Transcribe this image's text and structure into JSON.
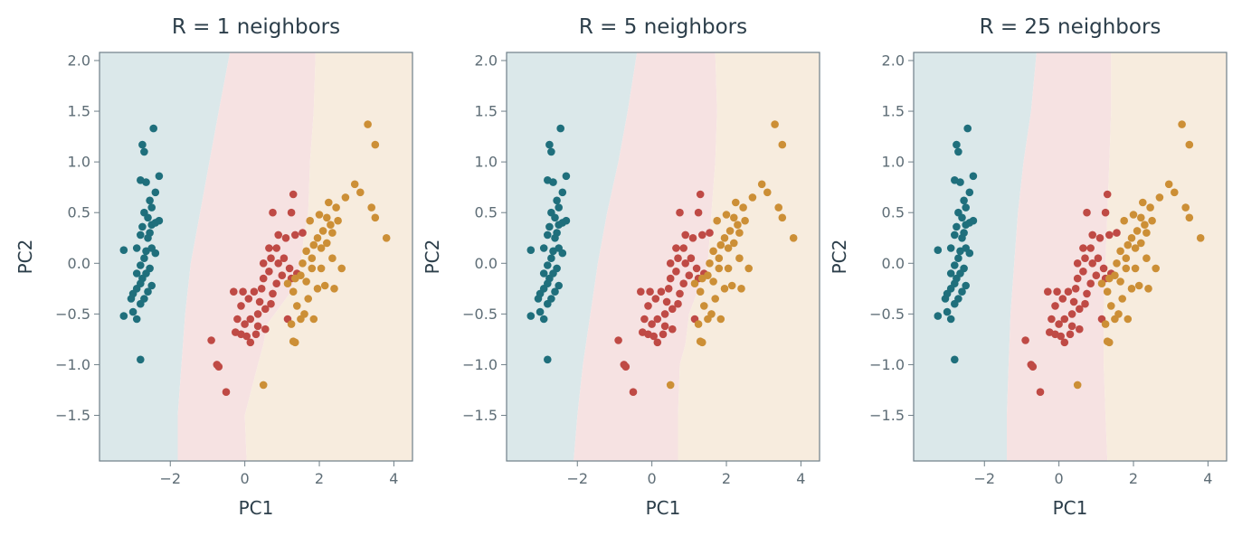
{
  "chart_data": [
    {
      "type": "scatter",
      "title": "R = 1 neighbors",
      "xlabel": "PC1",
      "ylabel": "PC2",
      "xlim": [
        -3.9,
        4.5
      ],
      "ylim": [
        -1.95,
        2.08
      ],
      "xticks": [
        -2,
        0,
        2,
        4
      ],
      "yticks": [
        -1.5,
        -1.0,
        -0.5,
        0.0,
        0.5,
        1.0,
        1.5,
        2.0
      ],
      "boundaries": [
        {
          "y": [
            2.08,
            1.5,
            1.0,
            0.5,
            0.0,
            -0.5,
            -1.0,
            -1.5,
            -1.95
          ],
          "x": [
            -0.4,
            -0.7,
            -0.95,
            -1.2,
            -1.45,
            -1.6,
            -1.7,
            -1.8,
            -1.8
          ]
        },
        {
          "y": [
            2.08,
            1.5,
            1.0,
            0.5,
            0.3,
            0.0,
            -0.3,
            -0.6,
            -0.8,
            -1.0,
            -1.5,
            -1.95
          ],
          "x": [
            1.9,
            1.85,
            1.75,
            1.7,
            1.6,
            1.5,
            1.2,
            0.6,
            0.5,
            0.35,
            0.0,
            0.05
          ]
        }
      ]
    },
    {
      "type": "scatter",
      "title": "R = 5 neighbors",
      "xlabel": "PC1",
      "ylabel": "PC2",
      "xlim": [
        -3.9,
        4.5
      ],
      "ylim": [
        -1.95,
        2.08
      ],
      "xticks": [
        -2,
        0,
        2,
        4
      ],
      "yticks": [
        -1.5,
        -1.0,
        -0.5,
        0.0,
        0.5,
        1.0,
        1.5,
        2.0
      ],
      "boundaries": [
        {
          "y": [
            2.08,
            1.5,
            1.0,
            0.5,
            0.0,
            -0.5,
            -1.0,
            -1.5,
            -1.95
          ],
          "x": [
            -0.4,
            -0.65,
            -0.9,
            -1.2,
            -1.45,
            -1.65,
            -1.85,
            -2.0,
            -2.1
          ]
        },
        {
          "y": [
            2.08,
            1.5,
            1.0,
            0.5,
            0.0,
            -0.3,
            -0.5,
            -0.8,
            -1.0,
            -1.5,
            -1.95
          ],
          "x": [
            1.7,
            1.75,
            1.7,
            1.6,
            1.5,
            1.2,
            1.0,
            0.9,
            0.75,
            0.7,
            0.7
          ]
        }
      ]
    },
    {
      "type": "scatter",
      "title": "R = 25 neighbors",
      "xlabel": "PC1",
      "ylabel": "PC2",
      "xlim": [
        -3.9,
        4.5
      ],
      "ylim": [
        -1.95,
        2.08
      ],
      "xticks": [
        -2,
        0,
        2,
        4
      ],
      "yticks": [
        -1.5,
        -1.0,
        -0.5,
        0.0,
        0.5,
        1.0,
        1.5,
        2.0
      ],
      "boundaries": [
        {
          "y": [
            2.08,
            1.5,
            1.0,
            0.5,
            0.0,
            -0.5,
            -1.0,
            -1.5,
            -1.95
          ],
          "x": [
            -0.6,
            -0.75,
            -0.95,
            -1.1,
            -1.2,
            -1.3,
            -1.35,
            -1.4,
            -1.4
          ]
        },
        {
          "y": [
            2.08,
            1.5,
            1.0,
            0.5,
            0.0,
            -0.5,
            -1.0,
            -1.5,
            -1.95
          ],
          "x": [
            1.4,
            1.4,
            1.35,
            1.3,
            1.25,
            1.2,
            1.2,
            1.25,
            1.3
          ]
        }
      ]
    }
  ],
  "classes": [
    {
      "color": "#1f6f7c",
      "region_color": "#dbe8ea"
    },
    {
      "color": "#bf4a45",
      "region_color": "#f6e2e2"
    },
    {
      "color": "#cc8f36",
      "region_color": "#f7ecde"
    }
  ],
  "points": [
    {
      "class": 0,
      "xy": [
        [
          -2.45,
          1.33
        ],
        [
          -2.75,
          1.17
        ],
        [
          -2.7,
          1.1
        ],
        [
          -2.3,
          0.86
        ],
        [
          -2.65,
          0.8
        ],
        [
          -2.8,
          0.82
        ],
        [
          -2.4,
          0.7
        ],
        [
          -2.55,
          0.62
        ],
        [
          -2.5,
          0.55
        ],
        [
          -2.7,
          0.5
        ],
        [
          -2.3,
          0.42
        ],
        [
          -2.6,
          0.45
        ],
        [
          -2.5,
          0.38
        ],
        [
          -2.75,
          0.36
        ],
        [
          -2.55,
          0.3
        ],
        [
          -2.4,
          0.4
        ],
        [
          -2.6,
          0.25
        ],
        [
          -2.8,
          0.28
        ],
        [
          -2.9,
          0.15
        ],
        [
          -2.65,
          0.12
        ],
        [
          -2.5,
          0.15
        ],
        [
          -2.7,
          0.05
        ],
        [
          -2.4,
          0.1
        ],
        [
          -2.8,
          -0.02
        ],
        [
          -2.55,
          -0.05
        ],
        [
          -2.65,
          -0.1
        ],
        [
          -2.9,
          -0.1
        ],
        [
          -2.75,
          -0.15
        ],
        [
          -2.5,
          -0.22
        ],
        [
          -2.8,
          -0.2
        ],
        [
          -2.9,
          -0.25
        ],
        [
          -2.6,
          -0.28
        ],
        [
          -2.7,
          -0.35
        ],
        [
          -3.0,
          -0.3
        ],
        [
          -3.05,
          -0.35
        ],
        [
          -2.8,
          -0.4
        ],
        [
          -3.25,
          0.13
        ],
        [
          -3.0,
          -0.48
        ],
        [
          -3.25,
          -0.52
        ],
        [
          -2.9,
          -0.55
        ],
        [
          -2.8,
          -0.95
        ]
      ]
    },
    {
      "class": 1,
      "xy": [
        [
          1.3,
          0.68
        ],
        [
          1.25,
          0.5
        ],
        [
          0.75,
          0.5
        ],
        [
          0.9,
          0.28
        ],
        [
          1.1,
          0.25
        ],
        [
          0.85,
          0.15
        ],
        [
          0.65,
          0.15
        ],
        [
          1.35,
          0.28
        ],
        [
          1.55,
          0.3
        ],
        [
          0.9,
          0.0
        ],
        [
          0.7,
          0.05
        ],
        [
          0.5,
          0.0
        ],
        [
          1.05,
          0.05
        ],
        [
          1.2,
          -0.05
        ],
        [
          0.65,
          -0.08
        ],
        [
          1.0,
          -0.12
        ],
        [
          1.25,
          -0.15
        ],
        [
          1.4,
          -0.1
        ],
        [
          0.5,
          -0.15
        ],
        [
          0.85,
          -0.2
        ],
        [
          0.45,
          -0.25
        ],
        [
          0.75,
          -0.3
        ],
        [
          0.25,
          -0.28
        ],
        [
          -0.05,
          -0.28
        ],
        [
          -0.3,
          -0.28
        ],
        [
          0.1,
          -0.35
        ],
        [
          0.4,
          -0.38
        ],
        [
          0.7,
          -0.4
        ],
        [
          0.55,
          -0.45
        ],
        [
          -0.1,
          -0.42
        ],
        [
          0.35,
          -0.5
        ],
        [
          0.15,
          -0.55
        ],
        [
          -0.2,
          -0.55
        ],
        [
          0.0,
          -0.6
        ],
        [
          0.35,
          -0.62
        ],
        [
          0.55,
          -0.65
        ],
        [
          -0.25,
          -0.68
        ],
        [
          0.05,
          -0.72
        ],
        [
          -0.1,
          -0.7
        ],
        [
          0.3,
          -0.7
        ],
        [
          -0.9,
          -0.76
        ],
        [
          0.15,
          -0.78
        ],
        [
          -0.7,
          -1.02
        ],
        [
          -0.75,
          -1.0
        ],
        [
          -0.5,
          -1.27
        ],
        [
          1.15,
          -0.55
        ]
      ]
    },
    {
      "class": 2,
      "xy": [
        [
          3.3,
          1.37
        ],
        [
          3.5,
          1.17
        ],
        [
          2.95,
          0.78
        ],
        [
          3.1,
          0.7
        ],
        [
          2.7,
          0.65
        ],
        [
          2.25,
          0.6
        ],
        [
          2.45,
          0.55
        ],
        [
          3.4,
          0.55
        ],
        [
          2.0,
          0.48
        ],
        [
          2.2,
          0.45
        ],
        [
          2.5,
          0.42
        ],
        [
          2.3,
          0.38
        ],
        [
          1.75,
          0.42
        ],
        [
          2.1,
          0.32
        ],
        [
          2.35,
          0.3
        ],
        [
          1.95,
          0.25
        ],
        [
          2.2,
          0.2
        ],
        [
          3.5,
          0.45
        ],
        [
          3.8,
          0.25
        ],
        [
          1.85,
          0.18
        ],
        [
          2.05,
          0.15
        ],
        [
          1.65,
          0.12
        ],
        [
          1.8,
          0.05
        ],
        [
          2.35,
          0.05
        ],
        [
          1.55,
          0.0
        ],
        [
          2.05,
          -0.05
        ],
        [
          1.8,
          -0.05
        ],
        [
          2.6,
          -0.05
        ],
        [
          1.5,
          -0.12
        ],
        [
          1.35,
          -0.15
        ],
        [
          1.65,
          -0.18
        ],
        [
          1.15,
          -0.2
        ],
        [
          1.3,
          -0.28
        ],
        [
          2.15,
          -0.22
        ],
        [
          2.4,
          -0.25
        ],
        [
          1.95,
          -0.25
        ],
        [
          1.7,
          -0.35
        ],
        [
          1.4,
          -0.42
        ],
        [
          1.6,
          -0.5
        ],
        [
          1.85,
          -0.55
        ],
        [
          1.5,
          -0.55
        ],
        [
          1.25,
          -0.6
        ],
        [
          1.3,
          -0.77
        ],
        [
          1.35,
          -0.78
        ],
        [
          0.5,
          -1.2
        ]
      ]
    }
  ]
}
